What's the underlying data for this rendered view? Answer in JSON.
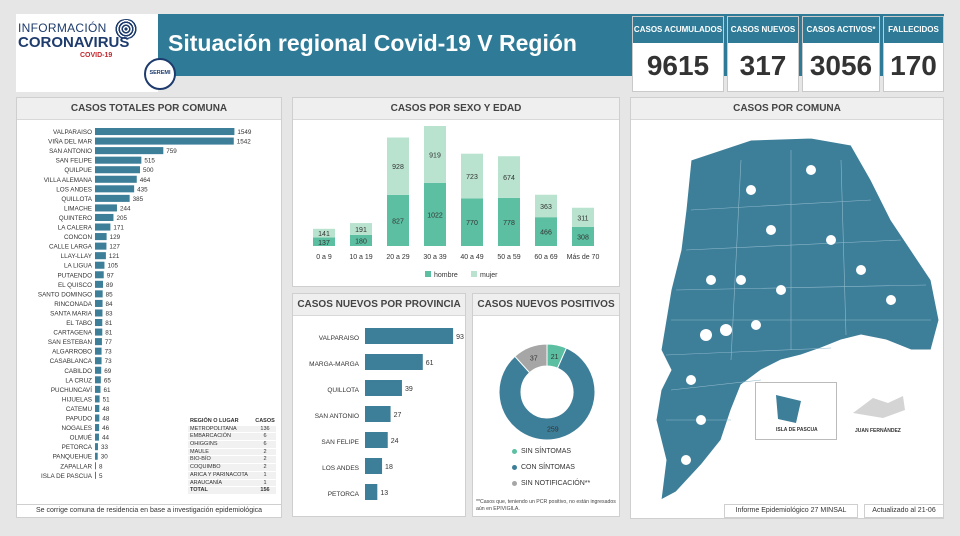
{
  "header": {
    "logo_line1": "INFORMACIÓN",
    "logo_line2": "CORONAVIRUS",
    "logo_line3": "COVID-19",
    "seremi": "SEREMI",
    "title": "Situación regional Covid-19 V Región"
  },
  "kpis": [
    {
      "label": "CASOS ACUMULADOS",
      "value": "9615"
    },
    {
      "label": "CASOS NUEVOS",
      "value": "317"
    },
    {
      "label": "CASOS ACTIVOS*",
      "value": "3056"
    },
    {
      "label": "FALLECIDOS",
      "value": "170"
    }
  ],
  "panels": {
    "comuna_title": "CASOS TOTALES POR COMUNA",
    "sexo_title": "CASOS POR SEXO Y EDAD",
    "provincia_title": "CASOS NUEVOS  POR PROVINCIA",
    "positivos_title": "CASOS NUEVOS POSITIVOS",
    "mapa_title": "CASOS POR COMUNA"
  },
  "region_table": {
    "header": [
      "REGIÓN  O LUGAR",
      "CASOS"
    ],
    "rows": [
      [
        "METROPOLITANA",
        "136"
      ],
      [
        "EMBARCACIÓN",
        "6"
      ],
      [
        "OHIGGINS",
        "6"
      ],
      [
        "MAULE",
        "2"
      ],
      [
        "BIO-BÍO",
        "2"
      ],
      [
        "COQUIMBO",
        "2"
      ],
      [
        "ARICA Y PARINACOTA",
        "1"
      ],
      [
        "ARAUCANÍA",
        "1"
      ]
    ],
    "total": [
      "TOTAL",
      "156"
    ]
  },
  "notes": {
    "comuna_footer": "Se corrige comuna de residencia en base a investigación epidemiológica",
    "positivos_footnote": "**Casos que, teniendo un PCR positivo, no están ingresados aún en EPIVIGILA.",
    "informe": "Informe Epidemiológico 27 MINSAL",
    "actualizado": "Actualizado al 21-06",
    "map_label_isla": "ISLA DE PASCUA",
    "map_label_juan": "JUAN FERNÁNDEZ"
  },
  "chart_data": [
    {
      "type": "bar",
      "orientation": "horizontal",
      "title": "CASOS TOTALES POR COMUNA",
      "categories": [
        "VALPARAISO",
        "VIÑA DEL MAR",
        "SAN ANTONIO",
        "SAN FELIPE",
        "QUILPUE",
        "VILLA ALEMANA",
        "LOS ANDES",
        "QUILLOTA",
        "LIMACHE",
        "QUINTERO",
        "LA CALERA",
        "CONCON",
        "CALLE LARGA",
        "LLAY-LLAY",
        "LA LIGUA",
        "PUTAENDO",
        "EL QUISCO",
        "SANTO DOMINGO",
        "RINCONADA",
        "SANTA MARIA",
        "EL TABO",
        "CARTAGENA",
        "SAN ESTEBAN",
        "ALGARROBO",
        "CASABLANCA",
        "CABILDO",
        "LA CRUZ",
        "PUCHUNCAVÍ",
        "HIJUELAS",
        "CATEMU",
        "PAPUDO",
        "NOGALES",
        "OLMUÉ",
        "PETORCA",
        "PANQUEHUE",
        "ZAPALLAR",
        "ISLA DE PASCUA"
      ],
      "values": [
        1549,
        1542,
        759,
        515,
        500,
        464,
        435,
        385,
        244,
        205,
        171,
        129,
        127,
        121,
        105,
        97,
        89,
        85,
        84,
        83,
        81,
        81,
        77,
        73,
        73,
        69,
        65,
        61,
        51,
        48,
        48,
        46,
        44,
        33,
        30,
        8,
        5
      ],
      "xlim": [
        0,
        1600
      ],
      "color": "#3d7e99"
    },
    {
      "type": "bar",
      "stacked": true,
      "title": "CASOS POR SEXO Y EDAD",
      "categories": [
        "0 a 9",
        "10 a 19",
        "20 a 29",
        "30 a 39",
        "40 a 49",
        "50 a 59",
        "60 a 69",
        "Más de 70"
      ],
      "series": [
        {
          "name": "hombre",
          "color": "#5cbfa1",
          "values": [
            137,
            180,
            827,
            1022,
            770,
            778,
            466,
            308
          ]
        },
        {
          "name": "mujer",
          "color": "#b9e3cf",
          "values": [
            141,
            191,
            928,
            919,
            723,
            674,
            363,
            311
          ]
        }
      ],
      "ylim": [
        0,
        2000
      ]
    },
    {
      "type": "bar",
      "orientation": "horizontal",
      "title": "CASOS NUEVOS  POR PROVINCIA",
      "categories": [
        "VALPARAISO",
        "MARGA-MARGA",
        "QUILLOTA",
        "SAN ANTONIO",
        "SAN FELIPE",
        "LOS ANDES",
        "PETORCA"
      ],
      "values": [
        93,
        61,
        39,
        27,
        24,
        18,
        13
      ],
      "xlim": [
        0,
        95
      ],
      "color": "#3d7e99"
    },
    {
      "type": "pie",
      "donut": true,
      "title": "CASOS NUEVOS POSITIVOS",
      "categories": [
        "SIN SÍNTOMAS",
        "CON SÍNTOMAS",
        "SIN NOTIFICACIÓN**"
      ],
      "values": [
        21,
        259,
        37
      ],
      "colors": [
        "#5cbfa1",
        "#3d7e99",
        "#a6a6a6"
      ]
    }
  ]
}
